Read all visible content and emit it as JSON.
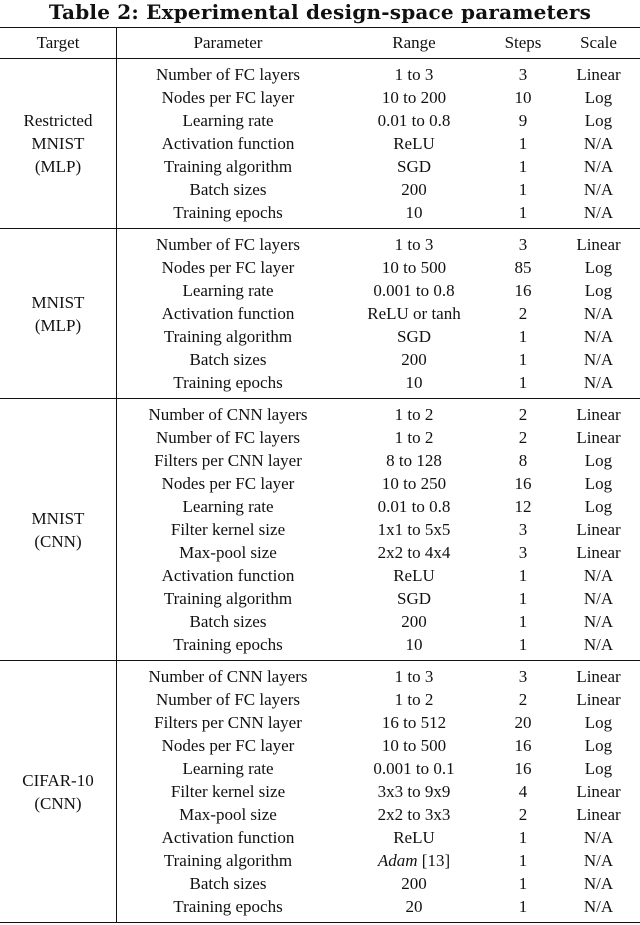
{
  "title": "Table 2: Experimental design-space parameters",
  "headers": [
    "Target",
    "Parameter",
    "Range",
    "Steps",
    "Scale"
  ],
  "groups": [
    {
      "target": "Restricted\nMNIST\n(MLP)",
      "rows": [
        [
          "Number of FC layers",
          "1 to 3",
          "3",
          "Linear"
        ],
        [
          "Nodes per FC layer",
          "10 to 200",
          "10",
          "Log"
        ],
        [
          "Learning rate",
          "0.01 to 0.8",
          "9",
          "Log"
        ],
        [
          "Activation function",
          "ReLU",
          "1",
          "N/A"
        ],
        [
          "Training algorithm",
          "SGD",
          "1",
          "N/A"
        ],
        [
          "Batch sizes",
          "200",
          "1",
          "N/A"
        ],
        [
          "Training epochs",
          "10",
          "1",
          "N/A"
        ]
      ]
    },
    {
      "target": "MNIST\n(MLP)",
      "rows": [
        [
          "Number of FC layers",
          "1 to 3",
          "3",
          "Linear"
        ],
        [
          "Nodes per FC layer",
          "10 to 500",
          "85",
          "Log"
        ],
        [
          "Learning rate",
          "0.001 to 0.8",
          "16",
          "Log"
        ],
        [
          "Activation function",
          "ReLU or tanh",
          "2",
          "N/A"
        ],
        [
          "Training algorithm",
          "SGD",
          "1",
          "N/A"
        ],
        [
          "Batch sizes",
          "200",
          "1",
          "N/A"
        ],
        [
          "Training epochs",
          "10",
          "1",
          "N/A"
        ]
      ]
    },
    {
      "target": "MNIST\n(CNN)",
      "rows": [
        [
          "Number of CNN layers",
          "1 to 2",
          "2",
          "Linear"
        ],
        [
          "Number of FC layers",
          "1 to 2",
          "2",
          "Linear"
        ],
        [
          "Filters per CNN layer",
          "8 to 128",
          "8",
          "Log"
        ],
        [
          "Nodes per FC layer",
          "10 to 250",
          "16",
          "Log"
        ],
        [
          "Learning rate",
          "0.01 to 0.8",
          "12",
          "Log"
        ],
        [
          "Filter kernel size",
          "1x1 to 5x5",
          "3",
          "Linear"
        ],
        [
          "Max-pool size",
          "2x2 to 4x4",
          "3",
          "Linear"
        ],
        [
          "Activation function",
          "ReLU",
          "1",
          "N/A"
        ],
        [
          "Training algorithm",
          "SGD",
          "1",
          "N/A"
        ],
        [
          "Batch sizes",
          "200",
          "1",
          "N/A"
        ],
        [
          "Training epochs",
          "10",
          "1",
          "N/A"
        ]
      ]
    },
    {
      "target": "CIFAR-10\n(CNN)",
      "rows": [
        [
          "Number of CNN layers",
          "1 to 3",
          "3",
          "Linear"
        ],
        [
          "Number of FC layers",
          "1 to 2",
          "2",
          "Linear"
        ],
        [
          "Filters per CNN layer",
          "16 to 512",
          "20",
          "Log"
        ],
        [
          "Nodes per FC layer",
          "10 to 500",
          "16",
          "Log"
        ],
        [
          "Learning rate",
          "0.001 to 0.1",
          "16",
          "Log"
        ],
        [
          "Filter kernel size",
          "3x3 to 9x9",
          "4",
          "Linear"
        ],
        [
          "Max-pool size",
          "2x2 to 3x3",
          "2",
          "Linear"
        ],
        [
          "Activation function",
          "ReLU",
          "1",
          "N/A"
        ],
        [
          "Training algorithm",
          {
            "italic": "Adam",
            "suffix": " [13]"
          },
          "1",
          "N/A"
        ],
        [
          "Batch sizes",
          "200",
          "1",
          "N/A"
        ],
        [
          "Training epochs",
          "20",
          "1",
          "N/A"
        ]
      ]
    }
  ]
}
